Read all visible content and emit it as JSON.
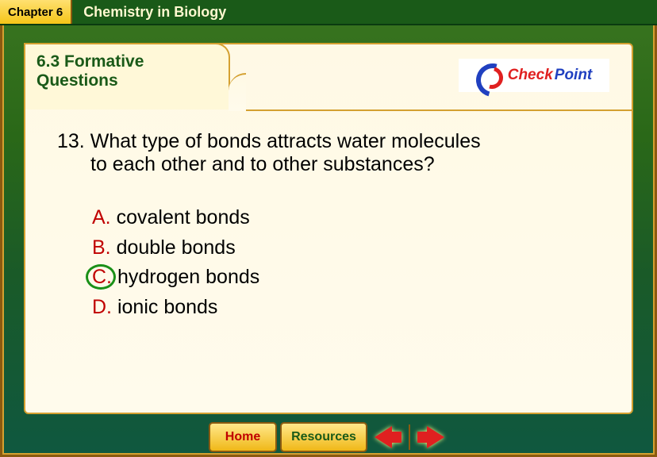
{
  "topbar": {
    "chapter_label": "Chapter 6",
    "chapter_title": "Chemistry in Biology"
  },
  "tab": {
    "title_line1": "6.3 Formative",
    "title_line2": "Questions"
  },
  "checkpoint": {
    "text1": "Check",
    "text2": "Point"
  },
  "question": {
    "number": "13.",
    "text_line1": "What type of bonds attracts water molecules",
    "text_line2": "to each other and to other substances?"
  },
  "answers": {
    "a": {
      "letter": "A.",
      "text": "covalent bonds"
    },
    "b": {
      "letter": "B.",
      "text": "double bonds"
    },
    "c": {
      "letter": "C.",
      "text": "hydrogen bonds"
    },
    "d": {
      "letter": "D.",
      "text": "ionic bonds"
    },
    "correct_key": "c"
  },
  "nav": {
    "home": "Home",
    "resources": "Resources"
  },
  "colors": {
    "accent_green": "#1a5a18",
    "accent_red": "#c00000",
    "circle_green": "#1a9018",
    "gold_border": "#d4a030"
  }
}
